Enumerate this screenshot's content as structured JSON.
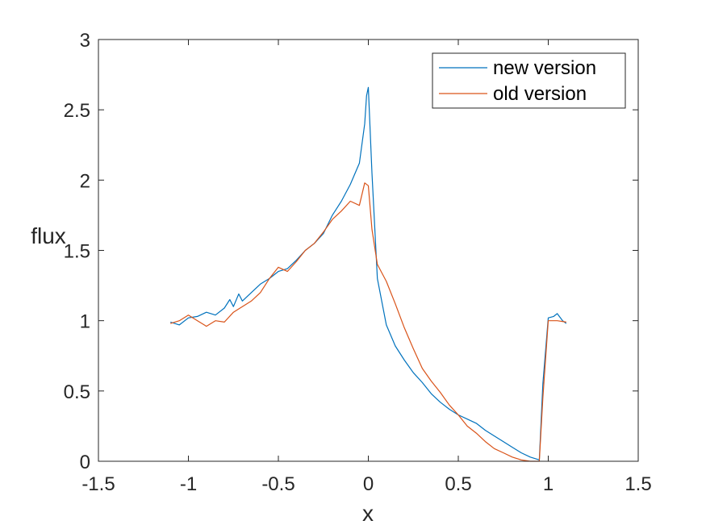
{
  "chart_data": {
    "type": "line",
    "title": "",
    "xlabel": "x",
    "ylabel": "flux",
    "xlim": [
      -1.5,
      1.5
    ],
    "ylim": [
      0,
      3
    ],
    "xticks": [
      -1.5,
      -1,
      -0.5,
      0,
      0.5,
      1,
      1.5
    ],
    "xtick_labels": [
      "-1.5",
      "-1",
      "-0.5",
      "0",
      "0.5",
      "1",
      "1.5"
    ],
    "yticks": [
      0,
      0.5,
      1,
      1.5,
      2,
      2.5,
      3
    ],
    "ytick_labels": [
      "0",
      "0.5",
      "1",
      "1.5",
      "2",
      "2.5",
      "3"
    ],
    "grid": false,
    "legend_position": "top-right",
    "series": [
      {
        "name": "new version",
        "color": "#0072BD",
        "x": [
          -1.1,
          -1.05,
          -1.0,
          -0.95,
          -0.9,
          -0.85,
          -0.8,
          -0.77,
          -0.75,
          -0.72,
          -0.7,
          -0.65,
          -0.6,
          -0.55,
          -0.5,
          -0.45,
          -0.4,
          -0.35,
          -0.3,
          -0.25,
          -0.2,
          -0.15,
          -0.1,
          -0.05,
          -0.02,
          -0.01,
          0.0,
          0.02,
          0.05,
          0.1,
          0.15,
          0.2,
          0.25,
          0.3,
          0.35,
          0.4,
          0.45,
          0.5,
          0.55,
          0.6,
          0.65,
          0.7,
          0.75,
          0.8,
          0.85,
          0.9,
          0.95,
          0.97,
          1.0,
          1.03,
          1.05,
          1.08,
          1.1
        ],
        "y": [
          0.99,
          0.97,
          1.02,
          1.03,
          1.06,
          1.04,
          1.09,
          1.15,
          1.1,
          1.19,
          1.14,
          1.2,
          1.26,
          1.3,
          1.35,
          1.37,
          1.43,
          1.5,
          1.55,
          1.62,
          1.75,
          1.85,
          1.97,
          2.12,
          2.4,
          2.6,
          2.66,
          2.05,
          1.3,
          0.97,
          0.82,
          0.72,
          0.63,
          0.56,
          0.48,
          0.42,
          0.37,
          0.33,
          0.3,
          0.27,
          0.22,
          0.18,
          0.14,
          0.1,
          0.06,
          0.03,
          0.01,
          0.55,
          1.02,
          1.03,
          1.05,
          1.0,
          0.98
        ]
      },
      {
        "name": "old version",
        "color": "#D95319",
        "x": [
          -1.1,
          -1.05,
          -1.0,
          -0.95,
          -0.9,
          -0.85,
          -0.8,
          -0.75,
          -0.7,
          -0.65,
          -0.6,
          -0.55,
          -0.5,
          -0.45,
          -0.4,
          -0.35,
          -0.3,
          -0.25,
          -0.2,
          -0.15,
          -0.1,
          -0.05,
          -0.02,
          0.0,
          0.02,
          0.05,
          0.1,
          0.15,
          0.2,
          0.25,
          0.3,
          0.35,
          0.4,
          0.45,
          0.5,
          0.55,
          0.6,
          0.65,
          0.7,
          0.75,
          0.8,
          0.85,
          0.9,
          0.95,
          0.97,
          1.0,
          1.05,
          1.1
        ],
        "y": [
          0.98,
          1.0,
          1.04,
          1.0,
          0.96,
          1.0,
          0.99,
          1.06,
          1.1,
          1.14,
          1.2,
          1.3,
          1.38,
          1.35,
          1.42,
          1.5,
          1.55,
          1.63,
          1.72,
          1.78,
          1.85,
          1.82,
          1.98,
          1.96,
          1.65,
          1.4,
          1.28,
          1.12,
          0.95,
          0.8,
          0.66,
          0.57,
          0.49,
          0.4,
          0.33,
          0.25,
          0.2,
          0.14,
          0.09,
          0.06,
          0.03,
          0.01,
          0.0,
          0.0,
          0.45,
          1.0,
          1.0,
          0.99
        ]
      }
    ]
  }
}
